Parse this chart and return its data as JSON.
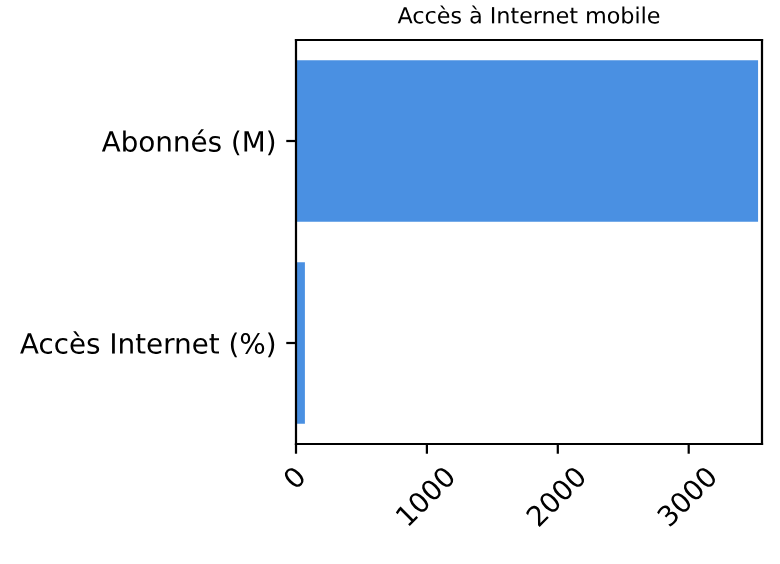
{
  "chart_data": {
    "type": "bar",
    "orientation": "horizontal",
    "title": "Accès à Internet mobile",
    "categories": [
      "Abonnés (M)",
      "Accès Internet (%)"
    ],
    "values": [
      3530,
      68
    ],
    "color": "#4a90e2",
    "xlim": [
      0,
      3560
    ],
    "xticks": [
      0,
      1000,
      2000,
      3000
    ],
    "grid": false
  }
}
